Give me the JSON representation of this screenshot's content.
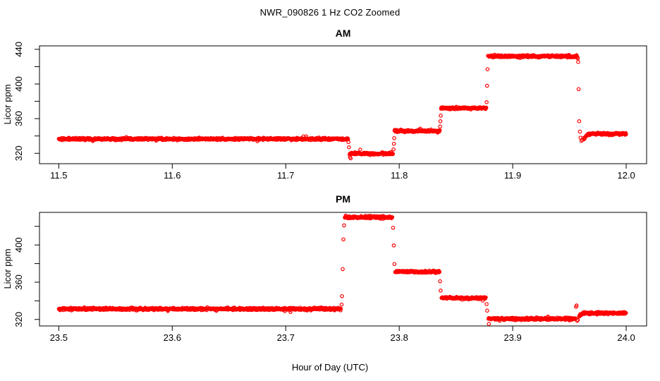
{
  "figure": {
    "title": "NWR_090826  1 Hz CO2 Zoomed",
    "background_color": "#FFFFFF",
    "axis_color": "#000000",
    "point_color": "#FF0000"
  },
  "chart_data": [
    {
      "type": "scatter",
      "panel_title": "AM",
      "ylabel": "Licor ppm",
      "xlabel": "",
      "marker": "open-circle",
      "sample_rate_hz": 1,
      "noise_sd_ppm": 0.6,
      "xlim": [
        11.483,
        12.018
      ],
      "ylim": [
        308,
        444
      ],
      "grid": "off",
      "xticks": [
        {
          "value": 11.5,
          "label": "11.5"
        },
        {
          "value": 11.6,
          "label": "11.6"
        },
        {
          "value": 11.7,
          "label": "11.7"
        },
        {
          "value": 11.8,
          "label": "11.8"
        },
        {
          "value": 11.9,
          "label": "11.9"
        },
        {
          "value": 12.0,
          "label": "12.0"
        }
      ],
      "yticks": [
        {
          "value": 320,
          "label": "320"
        },
        {
          "value": 340,
          "label": ""
        },
        {
          "value": 360,
          "label": "360"
        },
        {
          "value": 380,
          "label": ""
        },
        {
          "value": 400,
          "label": "400"
        },
        {
          "value": 420,
          "label": ""
        },
        {
          "value": 440,
          "label": "440"
        }
      ],
      "segments": [
        {
          "x0": 11.5,
          "x1": 11.755,
          "y": 336.5
        },
        {
          "x0": 11.7562,
          "x1": 11.7948,
          "y": 319.6
        },
        {
          "x0": 11.7958,
          "x1": 11.8358,
          "y": 345.8
        },
        {
          "x0": 11.8368,
          "x1": 11.8768,
          "y": 372.2
        },
        {
          "x0": 11.8782,
          "x1": 11.9572,
          "y": 432.0
        },
        {
          "x0": 11.963,
          "x1": 12.0,
          "y": 342.4,
          "ease_from": 336.0
        }
      ],
      "transition_points": [
        {
          "x": 11.7552,
          "y": 333.0
        },
        {
          "x": 11.7557,
          "y": 327.0
        },
        {
          "x": 11.7566,
          "y": 315.5
        },
        {
          "x": 11.7572,
          "y": 314.2
        },
        {
          "x": 11.795,
          "y": 324.5
        },
        {
          "x": 11.7953,
          "y": 331.0
        },
        {
          "x": 11.7956,
          "y": 337.5
        },
        {
          "x": 11.836,
          "y": 351.0
        },
        {
          "x": 11.8363,
          "y": 357.0
        },
        {
          "x": 11.8366,
          "y": 363.5
        },
        {
          "x": 11.877,
          "y": 379.0
        },
        {
          "x": 11.8774,
          "y": 398.0
        },
        {
          "x": 11.8778,
          "y": 417.0
        },
        {
          "x": 11.9574,
          "y": 429.5
        },
        {
          "x": 11.9577,
          "y": 425.5
        },
        {
          "x": 11.9581,
          "y": 394.0
        },
        {
          "x": 11.9586,
          "y": 357.0
        },
        {
          "x": 11.9592,
          "y": 345.0
        },
        {
          "x": 11.9598,
          "y": 338.0
        },
        {
          "x": 11.9606,
          "y": 334.5
        },
        {
          "x": 11.9614,
          "y": 335.5
        },
        {
          "x": 11.9622,
          "y": 337.5
        }
      ]
    },
    {
      "type": "scatter",
      "panel_title": "PM",
      "ylabel": "Licor ppm",
      "xlabel": "Hour of Day (UTC)",
      "marker": "open-circle",
      "sample_rate_hz": 1,
      "noise_sd_ppm": 0.6,
      "xlim": [
        23.483,
        24.018
      ],
      "ylim": [
        313,
        435
      ],
      "grid": "off",
      "xticks": [
        {
          "value": 23.5,
          "label": "23.5"
        },
        {
          "value": 23.6,
          "label": "23.6"
        },
        {
          "value": 23.7,
          "label": "23.7"
        },
        {
          "value": 23.8,
          "label": "23.8"
        },
        {
          "value": 23.9,
          "label": "23.9"
        },
        {
          "value": 24.0,
          "label": "24.0"
        }
      ],
      "yticks": [
        {
          "value": 320,
          "label": "320"
        },
        {
          "value": 340,
          "label": ""
        },
        {
          "value": 360,
          "label": "360"
        },
        {
          "value": 380,
          "label": ""
        },
        {
          "value": 400,
          "label": "400"
        },
        {
          "value": 420,
          "label": ""
        }
      ],
      "segments": [
        {
          "x0": 23.5,
          "x1": 23.7488,
          "y": 331.3
        },
        {
          "x0": 23.752,
          "x1": 23.7942,
          "y": 429.8
        },
        {
          "x0": 23.7964,
          "x1": 23.8356,
          "y": 371.3
        },
        {
          "x0": 23.8372,
          "x1": 23.8766,
          "y": 343.0
        },
        {
          "x0": 23.8786,
          "x1": 23.9554,
          "y": 320.7
        },
        {
          "x0": 23.9585,
          "x1": 24.0,
          "y": 326.8,
          "ease_from": 323.0
        }
      ],
      "transition_points": [
        {
          "x": 23.7492,
          "y": 336.0
        },
        {
          "x": 23.7496,
          "y": 345.0
        },
        {
          "x": 23.7502,
          "y": 374.0
        },
        {
          "x": 23.7508,
          "y": 406.0
        },
        {
          "x": 23.7514,
          "y": 421.0
        },
        {
          "x": 23.7946,
          "y": 418.5
        },
        {
          "x": 23.7952,
          "y": 399.5
        },
        {
          "x": 23.7958,
          "y": 379.5
        },
        {
          "x": 23.836,
          "y": 361.0
        },
        {
          "x": 23.8365,
          "y": 351.0
        },
        {
          "x": 23.877,
          "y": 336.5
        },
        {
          "x": 23.8775,
          "y": 329.5
        },
        {
          "x": 23.879,
          "y": 315.2
        },
        {
          "x": 23.9558,
          "y": 333.5
        },
        {
          "x": 23.9563,
          "y": 335.0
        },
        {
          "x": 23.9568,
          "y": 318.5
        },
        {
          "x": 23.9574,
          "y": 319.5
        }
      ]
    }
  ]
}
